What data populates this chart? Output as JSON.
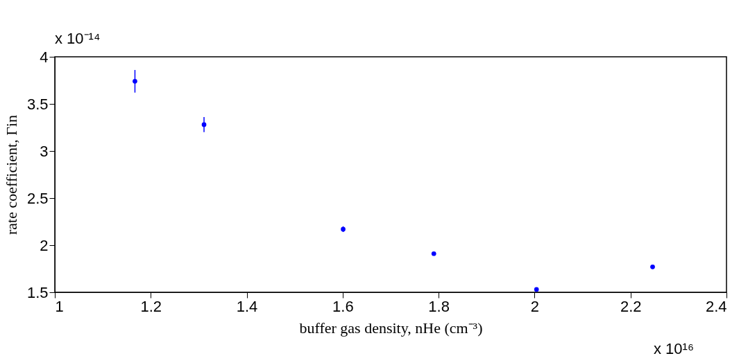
{
  "chart_data": {
    "type": "scatter",
    "xlabel": "buffer gas density, nHe (cm⁻³)",
    "ylabel": "rate coefficient, Γin",
    "x": [
      1.167,
      1.311,
      1.601,
      1.79,
      2.004,
      2.246
    ],
    "series": [
      {
        "color": "#0000ff",
        "values": [
          3.74,
          3.28,
          2.17,
          1.91,
          1.53,
          1.77
        ],
        "errors": [
          0.12,
          0.08,
          0.03,
          null,
          null,
          null
        ]
      }
    ],
    "xlim": [
      1,
      2.4
    ],
    "xticks": [
      1,
      1.2,
      1.4,
      1.6,
      1.8,
      2,
      2.2,
      2.4
    ],
    "ylim": [
      1.5,
      4
    ],
    "yticks": [
      1.5,
      2,
      2.5,
      3,
      3.5,
      4
    ],
    "grid": false,
    "marker": "circle",
    "annotations": [
      "x 10⁻¹⁴",
      "x 10¹⁶"
    ]
  }
}
